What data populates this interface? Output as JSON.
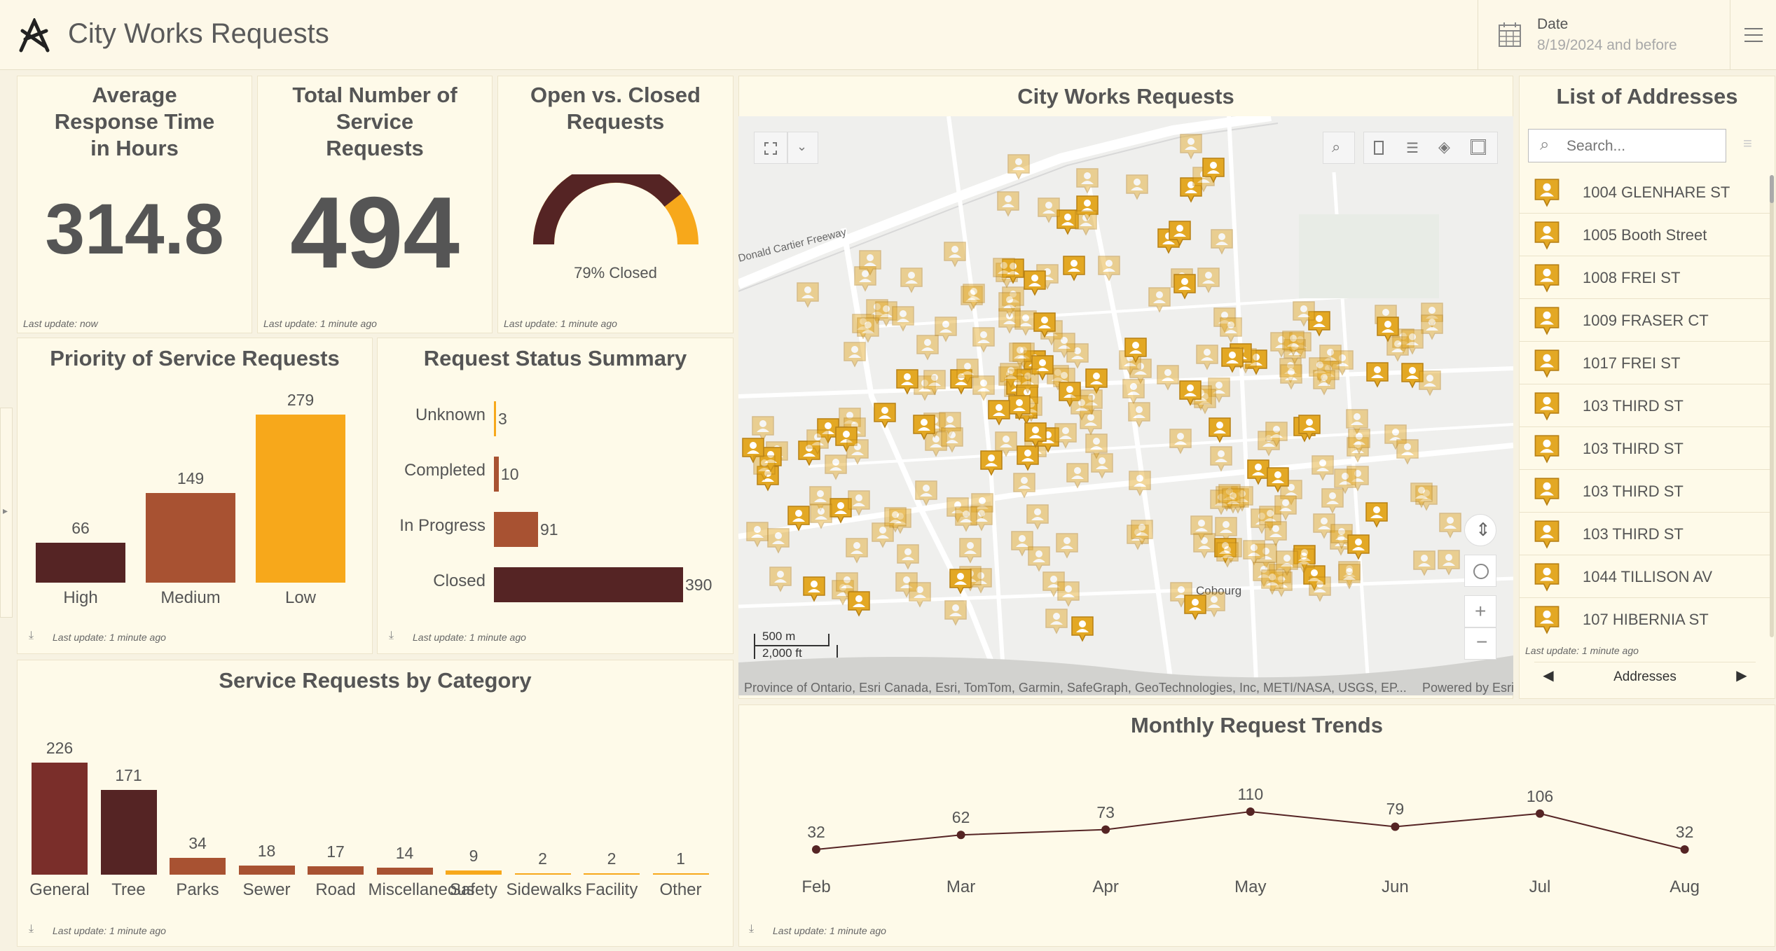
{
  "header": {
    "title": "City Works Requests",
    "date_label": "Date",
    "date_value": "8/19/2024 and before"
  },
  "cards": {
    "avg_response": {
      "title": "Average Response Time in Hours",
      "value": "314.8",
      "updated": "Last update: now"
    },
    "total_requests": {
      "title": "Total Number of Service Requests",
      "value": "494",
      "updated": "Last update: 1 minute ago"
    },
    "open_closed": {
      "title": "Open vs. Closed Requests",
      "label": "79% Closed",
      "updated": "Last update: 1 minute ago"
    }
  },
  "colors": {
    "dark": "#552424",
    "medium": "#a85232",
    "light": "#f7a81b",
    "pin": "#e3a824",
    "background": "#f7f2e2",
    "card": "#fefae9"
  },
  "chart_data": [
    {
      "type": "bar",
      "title": "Priority of Service Requests",
      "categories": [
        "High",
        "Medium",
        "Low"
      ],
      "values": [
        66,
        149,
        279
      ],
      "updated": "Last update: 1 minute ago"
    },
    {
      "type": "bar",
      "title": "Request Status Summary",
      "orientation": "horizontal",
      "categories": [
        "Unknown",
        "Completed",
        "In Progress",
        "Closed"
      ],
      "values": [
        3,
        10,
        91,
        390
      ],
      "updated": "Last update: 1 minute ago"
    },
    {
      "type": "bar",
      "title": "Service Requests by Category",
      "categories": [
        "General",
        "Tree",
        "Parks",
        "Sewer",
        "Road",
        "Miscellaneous",
        "Safety",
        "Sidewalks",
        "Facility",
        "Other"
      ],
      "values": [
        226,
        171,
        34,
        18,
        17,
        14,
        9,
        2,
        2,
        1
      ],
      "updated": "Last update: 1 minute ago"
    },
    {
      "type": "line",
      "title": "Monthly Request Trends",
      "x": [
        "Feb",
        "Mar",
        "Apr",
        "May",
        "Jun",
        "Jul",
        "Aug"
      ],
      "values": [
        32,
        62,
        73,
        110,
        79,
        106,
        32
      ],
      "updated": "Last update: 1 minute ago"
    },
    {
      "type": "gauge",
      "title": "Open vs. Closed Requests",
      "closed_fraction": 0.79
    }
  ],
  "map": {
    "title": "City Works Requests",
    "road_label": "Donald Cartier Freeway",
    "place_label": "Cobourg",
    "scale_metric": "500 m",
    "scale_imperial": "2,000 ft",
    "attribution": "Province of Ontario, Esri Canada, Esri, TomTom, Garmin, SafeGraph, GeoTechnologies, Inc, METI/NASA, USGS, EP...",
    "powered_by": "Powered by Esri",
    "pin_icon": "map-marker-icon"
  },
  "address_list": {
    "title": "List of Addresses",
    "search_placeholder": "Search...",
    "items": [
      "1004 GLENHARE ST",
      "1005 Booth Street",
      "1008 FREI ST",
      "1009 FRASER CT",
      "1017 FREI ST",
      "103 THIRD ST",
      "103 THIRD ST",
      "103 THIRD ST",
      "103 THIRD ST",
      "1044 TILLISON AV",
      "107 HIBERNIA ST"
    ],
    "updated": "Last update: 1 minute ago",
    "nav_label": "Addresses"
  }
}
